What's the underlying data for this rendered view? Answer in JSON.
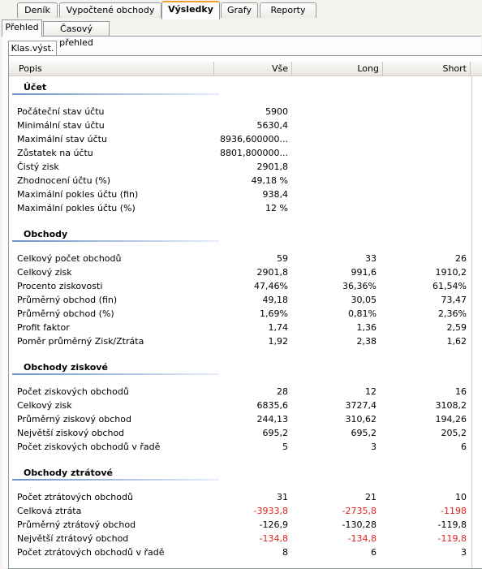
{
  "tabs": [
    "Deník",
    "Vypočtené obchody",
    "Výsledky",
    "Grafy",
    "Reporty"
  ],
  "subtabs": [
    "Přehled",
    "Časový přehled"
  ],
  "inner_tab": "Klas.výst.",
  "table": {
    "columns": [
      "Popis",
      "Vše",
      "Long",
      "Short"
    ],
    "sections": [
      {
        "title": "Účet",
        "rows": [
          [
            "Počáteční stav účtu",
            "5900"
          ],
          [
            "Minimální stav účtu",
            "5630,4"
          ],
          [
            "Maximální stav účtu",
            "8936,600000..."
          ],
          [
            "Zůstatek na účtu",
            "8801,800000..."
          ],
          [
            "Čistý zisk",
            "2901,8"
          ],
          [
            "Zhodnocení účtu (%)",
            "49,18 %"
          ],
          [
            "Maximální pokles účtu (fin)",
            "938,4"
          ],
          [
            "Maximální pokles účtu (%)",
            "12 %"
          ]
        ]
      },
      {
        "title": "Obchody",
        "rows": [
          [
            "Celkový počet obchodů",
            "59",
            "33",
            "26"
          ],
          [
            "Celkový zisk",
            "2901,8",
            "991,6",
            "1910,2"
          ],
          [
            "Procento ziskovosti",
            "47,46%",
            "36,36%",
            "61,54%"
          ],
          [
            "Průměrný obchod (fin)",
            "49,18",
            "30,05",
            "73,47"
          ],
          [
            "Průměrný obchod (%)",
            "1,69%",
            "0,81%",
            "2,36%"
          ],
          [
            "Profit faktor",
            "1,74",
            "1,36",
            "2,59"
          ],
          [
            "Poměr průměrný Zisk/Ztráta",
            "1,92",
            "2,38",
            "1,62"
          ]
        ]
      },
      {
        "title": "Obchody ziskové",
        "rows": [
          [
            "Počet ziskových obchodů",
            "28",
            "12",
            "16"
          ],
          [
            "Celkový zisk",
            "6835,6",
            "3727,4",
            "3108,2"
          ],
          [
            "Průměrný ziskový obchod",
            "244,13",
            "310,62",
            "194,26"
          ],
          [
            "Největší ziskový obchod",
            "695,2",
            "695,2",
            "205,2"
          ],
          [
            "Počet ziskových obchodů v řadě",
            "5",
            "3",
            "6"
          ]
        ]
      },
      {
        "title": "Obchody ztrátové",
        "rows": [
          [
            "Počet ztrátových obchodů",
            "31",
            "21",
            "10"
          ],
          {
            "cells": [
              "Celková ztráta",
              "-3933,8",
              "-2735,8",
              "-1198"
            ],
            "color": "#e0201c"
          },
          [
            "Průměrný ztrátový obchod",
            "-126,9",
            "-130,28",
            "-119,8"
          ],
          {
            "cells": [
              "Největší ztrátový obchod",
              "-134,8",
              "-134,8",
              "-119,8"
            ],
            "color": "#e0201c"
          },
          [
            "Počet ztrátových obchodů v řadě",
            "8",
            "6",
            "3"
          ]
        ]
      }
    ]
  }
}
